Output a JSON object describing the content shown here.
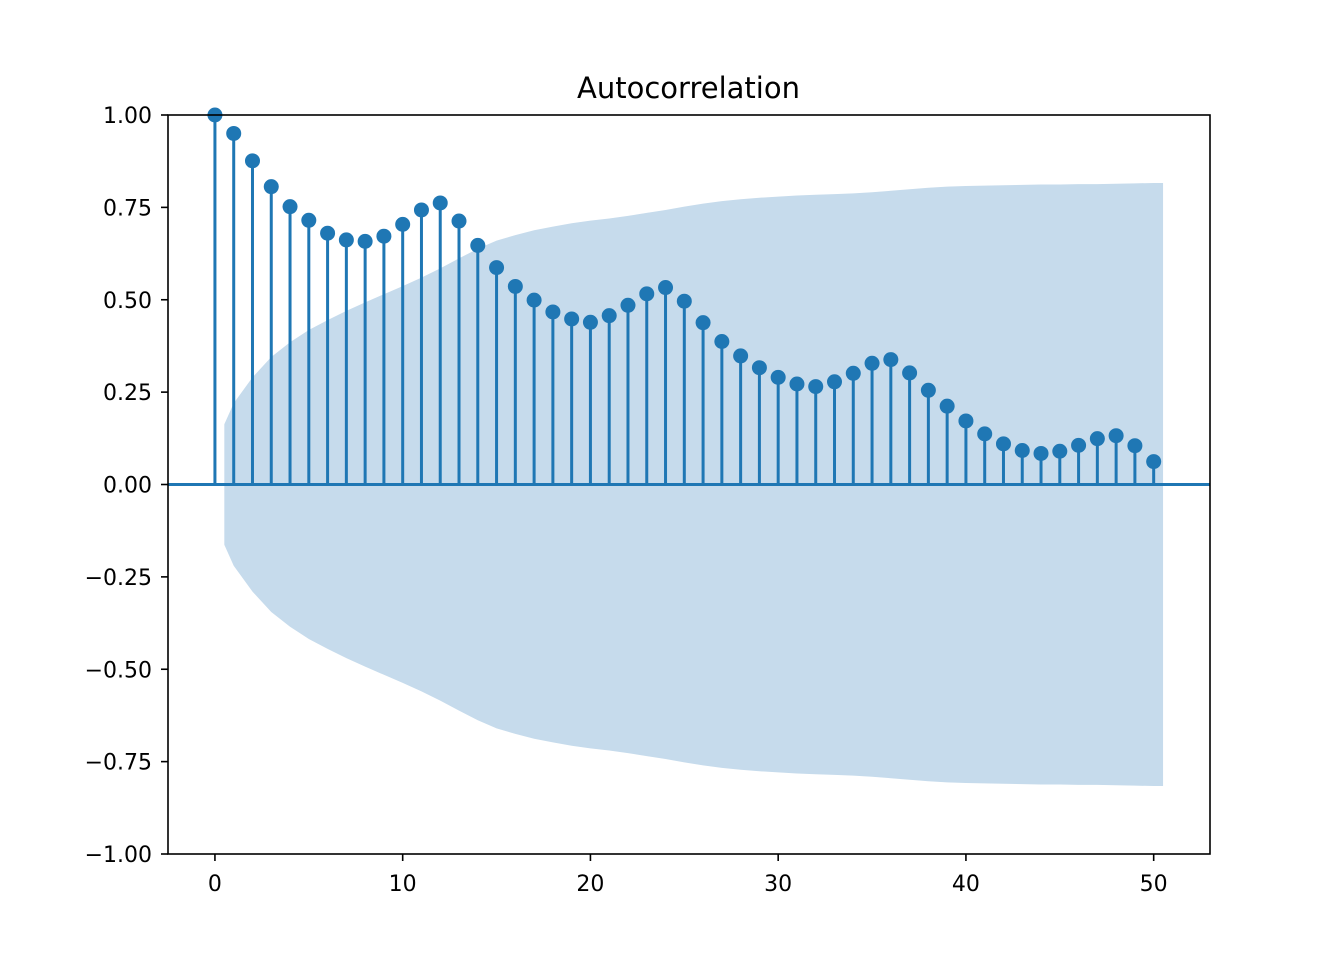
{
  "chart_data": {
    "type": "stem",
    "title": "Autocorrelation",
    "xlabel": "",
    "ylabel": "",
    "xlim": [
      -2.5,
      53
    ],
    "ylim": [
      -1.0,
      1.0
    ],
    "xticks": [
      0,
      10,
      20,
      30,
      40,
      50
    ],
    "xtick_labels": [
      "0",
      "10",
      "20",
      "30",
      "40",
      "50"
    ],
    "yticks": [
      1.0,
      0.75,
      0.5,
      0.25,
      0.0,
      -0.25,
      -0.5,
      -0.75,
      -1.0
    ],
    "ytick_labels": [
      "1.00",
      "0.75",
      "0.50",
      "0.25",
      "0.00",
      "−0.25",
      "−0.50",
      "−0.75",
      "−1.00"
    ],
    "grid": false,
    "colors": {
      "stem": "#1f77b4",
      "confidence_band": "#c6dbec",
      "axes": "#000000"
    },
    "lags": [
      0,
      1,
      2,
      3,
      4,
      5,
      6,
      7,
      8,
      9,
      10,
      11,
      12,
      13,
      14,
      15,
      16,
      17,
      18,
      19,
      20,
      21,
      22,
      23,
      24,
      25,
      26,
      27,
      28,
      29,
      30,
      31,
      32,
      33,
      34,
      35,
      36,
      37,
      38,
      39,
      40,
      41,
      42,
      43,
      44,
      45,
      46,
      47,
      48,
      49,
      50
    ],
    "values": [
      1.0,
      0.95,
      0.876,
      0.806,
      0.752,
      0.715,
      0.68,
      0.662,
      0.658,
      0.672,
      0.704,
      0.743,
      0.762,
      0.713,
      0.647,
      0.587,
      0.536,
      0.499,
      0.467,
      0.448,
      0.439,
      0.457,
      0.485,
      0.516,
      0.533,
      0.496,
      0.438,
      0.387,
      0.348,
      0.316,
      0.29,
      0.272,
      0.265,
      0.278,
      0.301,
      0.328,
      0.338,
      0.302,
      0.255,
      0.212,
      0.172,
      0.137,
      0.11,
      0.092,
      0.084,
      0.09,
      0.106,
      0.124,
      0.132,
      0.105,
      0.062
    ],
    "confidence_band": {
      "x": [
        0.5,
        1,
        2,
        3,
        4,
        5,
        6,
        7,
        8,
        9,
        10,
        11,
        12,
        13,
        14,
        15,
        16,
        17,
        18,
        19,
        20,
        21,
        22,
        23,
        24,
        25,
        26,
        27,
        28,
        29,
        30,
        31,
        32,
        33,
        34,
        35,
        36,
        37,
        38,
        39,
        40,
        41,
        42,
        43,
        44,
        45,
        46,
        47,
        48,
        49,
        50,
        50.5
      ],
      "upper": [
        0.163,
        0.22,
        0.29,
        0.345,
        0.385,
        0.418,
        0.445,
        0.47,
        0.493,
        0.515,
        0.537,
        0.56,
        0.585,
        0.612,
        0.638,
        0.66,
        0.675,
        0.688,
        0.698,
        0.707,
        0.714,
        0.72,
        0.727,
        0.735,
        0.743,
        0.752,
        0.76,
        0.767,
        0.772,
        0.776,
        0.779,
        0.782,
        0.784,
        0.786,
        0.788,
        0.791,
        0.795,
        0.799,
        0.803,
        0.806,
        0.808,
        0.809,
        0.81,
        0.811,
        0.812,
        0.812,
        0.813,
        0.813,
        0.814,
        0.815,
        0.816,
        0.816
      ],
      "lower": [
        -0.163,
        -0.22,
        -0.29,
        -0.345,
        -0.385,
        -0.418,
        -0.445,
        -0.47,
        -0.493,
        -0.515,
        -0.537,
        -0.56,
        -0.585,
        -0.612,
        -0.638,
        -0.66,
        -0.675,
        -0.688,
        -0.698,
        -0.707,
        -0.714,
        -0.72,
        -0.727,
        -0.735,
        -0.743,
        -0.752,
        -0.76,
        -0.767,
        -0.772,
        -0.776,
        -0.779,
        -0.782,
        -0.784,
        -0.786,
        -0.788,
        -0.791,
        -0.795,
        -0.799,
        -0.803,
        -0.806,
        -0.808,
        -0.809,
        -0.81,
        -0.811,
        -0.812,
        -0.812,
        -0.813,
        -0.813,
        -0.814,
        -0.815,
        -0.816,
        -0.816
      ]
    }
  }
}
